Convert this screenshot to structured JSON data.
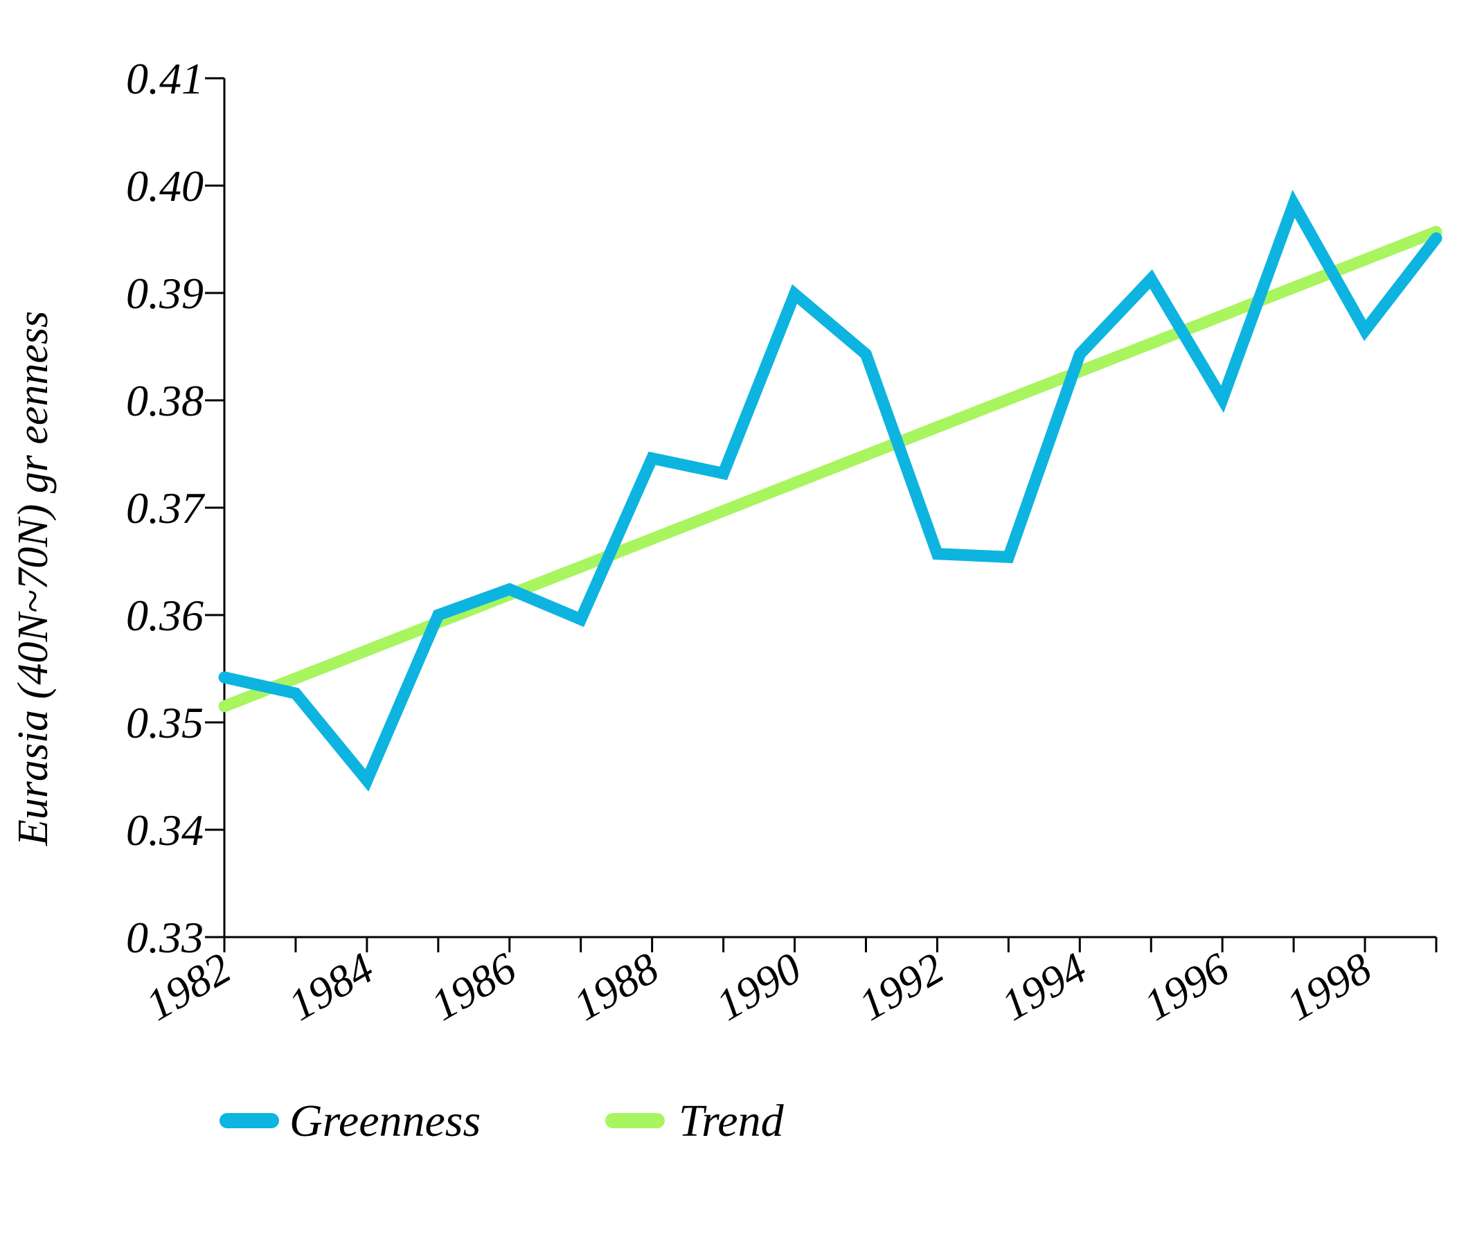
{
  "chart_data": {
    "type": "line",
    "ylabel": "Eurasia (40N~70N) gr   eenness",
    "x": [
      1982,
      1983,
      1984,
      1985,
      1986,
      1987,
      1988,
      1989,
      1990,
      1991,
      1992,
      1993,
      1994,
      1995,
      1996,
      1997,
      1998,
      1999
    ],
    "x_tick_labels": [
      "1982",
      "1984",
      "1986",
      "1988",
      "1990",
      "1992",
      "1994",
      "1996",
      "1998"
    ],
    "y_tick_labels": [
      "0.33",
      "0.34",
      "0.35",
      "0.36",
      "0.37",
      "0.38",
      "0.39",
      "0.40",
      "0.41"
    ],
    "xlim": [
      1982,
      1999
    ],
    "ylim": [
      0.33,
      0.41
    ],
    "grid": false,
    "legend_position": "bottom",
    "series": [
      {
        "name": "Greenness",
        "color": "#0DB4E0",
        "values": [
          0.3542,
          0.3527,
          0.3446,
          0.36,
          0.3624,
          0.3596,
          0.3746,
          0.3732,
          0.3899,
          0.3843,
          0.3657,
          0.3654,
          0.3843,
          0.3913,
          0.3801,
          0.3983,
          0.3865,
          0.3951
        ]
      },
      {
        "name": "Trend",
        "color": "#A8F55F",
        "values": [
          0.3515,
          0.3541,
          0.3567,
          0.3593,
          0.3619,
          0.3645,
          0.3671,
          0.3697,
          0.3723,
          0.3749,
          0.3775,
          0.3801,
          0.3827,
          0.3853,
          0.3879,
          0.3905,
          0.3931,
          0.3957
        ]
      }
    ],
    "axis_color": "#000000"
  }
}
